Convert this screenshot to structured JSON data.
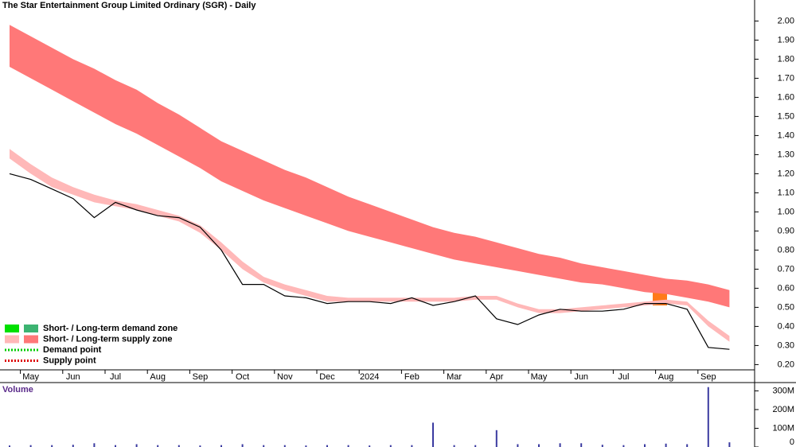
{
  "chart_data": [
    {
      "type": "line",
      "title": "The Star Entertainment Group Limited Ordinary (SGR) - Daily",
      "categories": [
        null,
        "May",
        null,
        "Jun",
        null,
        "Jul",
        null,
        "Aug",
        null,
        "Sep",
        null,
        "Oct",
        null,
        "Nov",
        null,
        "Dec",
        null,
        "2024",
        null,
        "Feb",
        null,
        "Mar",
        null,
        "Apr",
        null,
        "May",
        null,
        "Jun",
        null,
        "Jul",
        null,
        "Aug",
        null,
        "Sep",
        null
      ],
      "series": [
        {
          "color": "#000000",
          "values": [
            1.2,
            1.17,
            1.12,
            1.07,
            0.97,
            1.05,
            1.01,
            0.98,
            0.97,
            0.92,
            0.8,
            0.62,
            0.62,
            0.56,
            0.55,
            0.52,
            0.53,
            0.53,
            0.52,
            0.55,
            0.51,
            0.53,
            0.56,
            0.44,
            0.41,
            0.46,
            0.49,
            0.48,
            0.48,
            0.49,
            0.52,
            0.52,
            0.49,
            0.29,
            0.28
          ]
        }
      ],
      "bands": [
        {
          "color": "#ff7878",
          "upper": [
            1.98,
            1.92,
            1.86,
            1.8,
            1.75,
            1.69,
            1.64,
            1.57,
            1.51,
            1.44,
            1.37,
            1.32,
            1.27,
            1.22,
            1.18,
            1.13,
            1.08,
            1.04,
            1.0,
            0.96,
            0.92,
            0.89,
            0.87,
            0.84,
            0.81,
            0.78,
            0.76,
            0.73,
            0.71,
            0.69,
            0.67,
            0.65,
            0.64,
            0.62,
            0.59
          ],
          "lower": [
            1.76,
            1.7,
            1.64,
            1.58,
            1.52,
            1.46,
            1.41,
            1.35,
            1.29,
            1.23,
            1.16,
            1.11,
            1.06,
            1.02,
            0.98,
            0.94,
            0.9,
            0.87,
            0.84,
            0.81,
            0.78,
            0.75,
            0.73,
            0.71,
            0.69,
            0.67,
            0.65,
            0.63,
            0.62,
            0.6,
            0.58,
            0.57,
            0.55,
            0.53,
            0.5
          ]
        },
        {
          "color": "#ffb8b8",
          "upper": [
            1.33,
            1.25,
            1.18,
            1.13,
            1.09,
            1.06,
            1.04,
            1.01,
            0.98,
            0.93,
            0.84,
            0.74,
            0.66,
            0.62,
            0.59,
            0.56,
            0.55,
            0.55,
            0.55,
            0.55,
            0.55,
            0.55,
            0.56,
            0.56,
            0.52,
            0.49,
            0.49,
            0.5,
            0.51,
            0.52,
            0.53,
            0.54,
            0.53,
            0.43,
            0.35
          ],
          "lower": [
            1.28,
            1.2,
            1.13,
            1.09,
            1.05,
            1.03,
            1.01,
            0.98,
            0.95,
            0.89,
            0.8,
            0.7,
            0.63,
            0.59,
            0.56,
            0.53,
            0.53,
            0.53,
            0.53,
            0.53,
            0.53,
            0.53,
            0.54,
            0.54,
            0.5,
            0.47,
            0.47,
            0.48,
            0.49,
            0.5,
            0.51,
            0.52,
            0.51,
            0.4,
            0.32
          ]
        }
      ],
      "ylim": [
        0.11,
        2.11
      ],
      "yticks": [
        {
          "value": 0.2,
          "label": "0.20"
        },
        {
          "value": 0.3,
          "label": "0.30"
        },
        {
          "value": 0.4,
          "label": "0.40"
        },
        {
          "value": 0.5,
          "label": "0.50"
        },
        {
          "value": 0.6,
          "label": "0.60"
        },
        {
          "value": 0.7,
          "label": "0.70"
        },
        {
          "value": 0.8,
          "label": "0.80"
        },
        {
          "value": 0.9,
          "label": "0.90"
        },
        {
          "value": 1.0,
          "label": "1.00"
        },
        {
          "value": 1.1,
          "label": "1.10"
        },
        {
          "value": 1.2,
          "label": "1.20"
        },
        {
          "value": 1.3,
          "label": "1.30"
        },
        {
          "value": 1.4,
          "label": "1.40"
        },
        {
          "value": 1.5,
          "label": "1.50"
        },
        {
          "value": 1.6,
          "label": "1.60"
        },
        {
          "value": 1.7,
          "label": "1.70"
        },
        {
          "value": 1.8,
          "label": "1.80"
        },
        {
          "value": 1.9,
          "label": "1.90"
        },
        {
          "value": 2.0,
          "label": "2.00"
        }
      ],
      "legend": [
        {
          "text": "Short- / Long-term demand zone",
          "colors": [
            "#00e000",
            "#3cb371"
          ],
          "kind": "zone"
        },
        {
          "text": "Short- / Long-term supply zone",
          "colors": [
            "#ffb8b8",
            "#ff7878"
          ],
          "kind": "zone"
        },
        {
          "text": "Demand point",
          "colors": [
            "#00cc00"
          ],
          "kind": "point"
        },
        {
          "text": "Supply point",
          "colors": [
            "#dd0000"
          ],
          "kind": "point"
        }
      ]
    },
    {
      "type": "bar",
      "title": "Volume",
      "color": "#3a3aa0",
      "values": [
        8,
        10,
        10,
        12,
        20,
        10,
        15,
        10,
        10,
        8,
        10,
        15,
        10,
        10,
        8,
        10,
        10,
        8,
        10,
        10,
        130,
        10,
        10,
        90,
        15,
        15,
        20,
        20,
        12,
        10,
        15,
        18,
        15,
        320,
        25
      ],
      "ylim": [
        0,
        340
      ],
      "yticks": [
        0,
        {
          "value": 100,
          "label": "100M"
        },
        {
          "value": 200,
          "label": "200M"
        },
        {
          "value": 300,
          "label": "300M"
        }
      ]
    }
  ]
}
